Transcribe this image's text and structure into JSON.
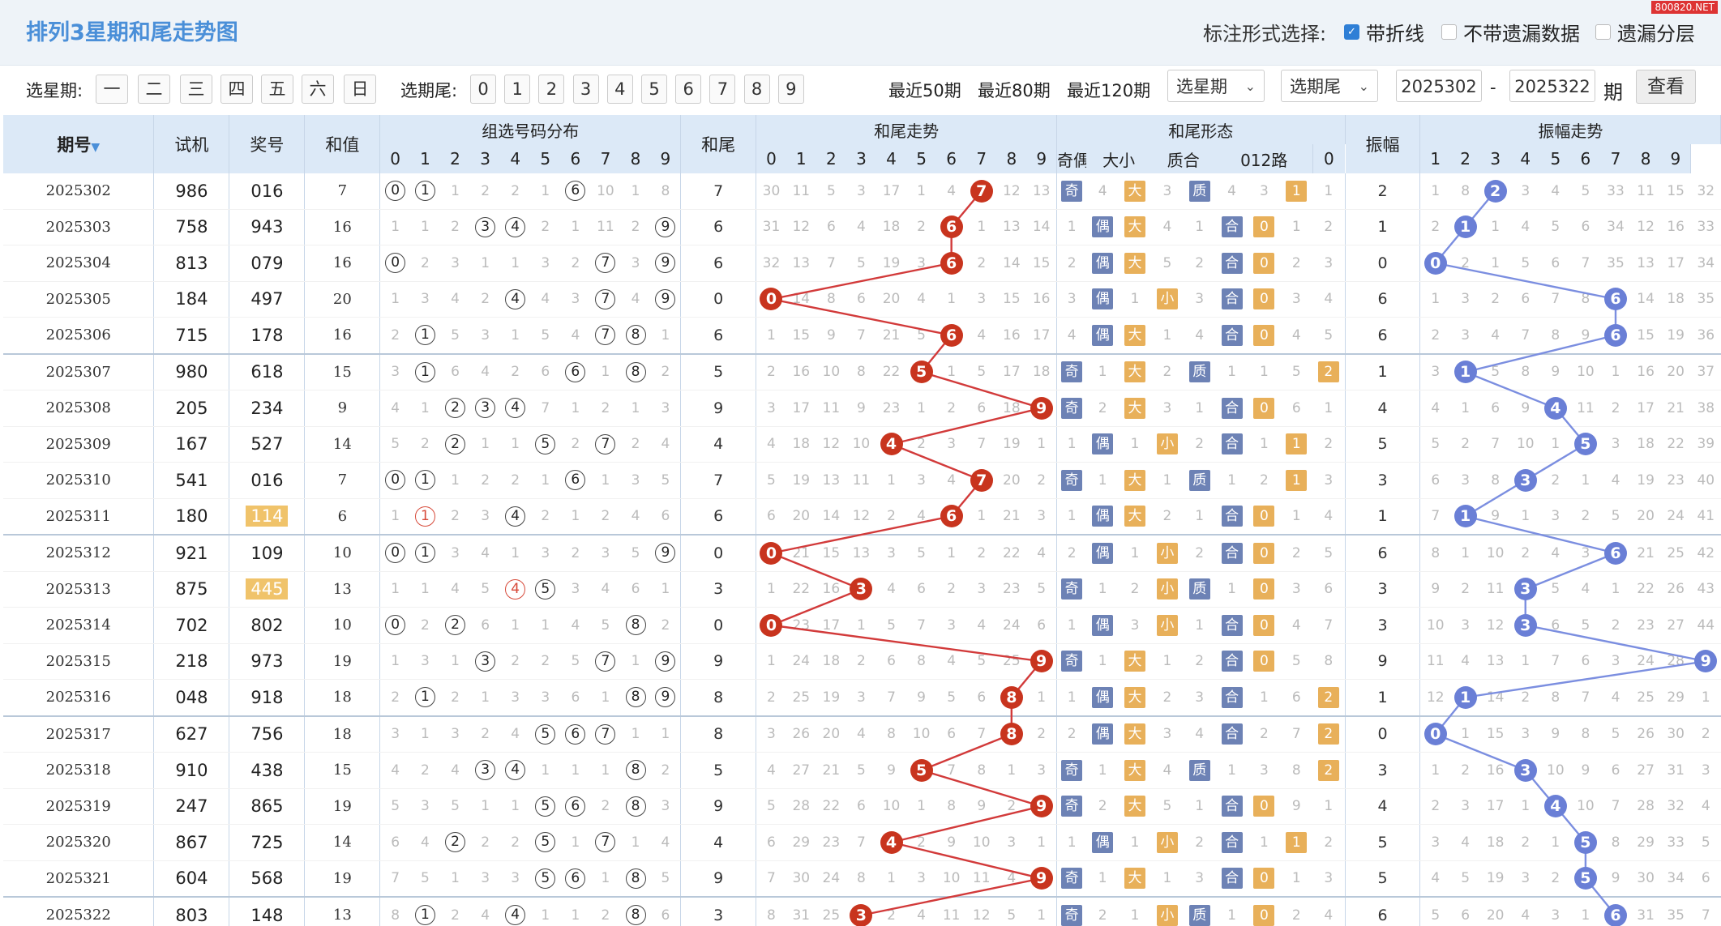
{
  "header": {
    "title": "排列3星期和尾走势图",
    "mark_label": "标注形式选择:",
    "options": [
      {
        "label": "带折线",
        "checked": true
      },
      {
        "label": "不带遗漏数据",
        "checked": false
      },
      {
        "label": "遗漏分层",
        "checked": false
      }
    ],
    "watermark": "800820.NET"
  },
  "controls": {
    "weekday_label": "选星期:",
    "weekdays": [
      "一",
      "二",
      "三",
      "四",
      "五",
      "六",
      "日"
    ],
    "tail_label": "选期尾:",
    "tails": [
      "0",
      "1",
      "2",
      "3",
      "4",
      "5",
      "6",
      "7",
      "8",
      "9"
    ],
    "quick": [
      "最近50期",
      "最近80期",
      "最近120期"
    ],
    "select_weekday": "选星期",
    "select_tail": "选期尾",
    "from": "2025302",
    "dash": "-",
    "to": "2025322",
    "period_label": "期",
    "view_button": "查看"
  },
  "table": {
    "headers": {
      "issue": "期号",
      "sj": "试机",
      "jh": "奖号",
      "hz": "和值",
      "zx": "组选号码分布",
      "hw": "和尾",
      "hwqs": "和尾走势",
      "hwxt": "和尾形态",
      "zf": "振幅",
      "zfqs": "振幅走势"
    },
    "form_headers": [
      "奇偶",
      "大小",
      "质合",
      "012路"
    ],
    "digits": [
      "0",
      "1",
      "2",
      "3",
      "4",
      "5",
      "6",
      "7",
      "8",
      "9"
    ],
    "rows": [
      {
        "issue": "2025302",
        "sj": "986",
        "jh": "016",
        "hz": "7",
        "zx": [
          "0",
          "1",
          "1",
          "2",
          "2",
          "1",
          "6",
          "10",
          "1",
          "8"
        ],
        "hw": "7",
        "hwqs": [
          "30",
          "11",
          "5",
          "3",
          "17",
          "1",
          "4",
          "7",
          "12",
          "13"
        ],
        "form": [
          "奇",
          "4",
          "大",
          "3",
          "质",
          "4",
          "3",
          "1",
          "1"
        ],
        "zf": "2",
        "zfqs": [
          "1",
          "8",
          "2",
          "3",
          "4",
          "5",
          "33",
          "11",
          "15",
          "32"
        ]
      },
      {
        "issue": "2025303",
        "sj": "758",
        "jh": "943",
        "hz": "16",
        "zx": [
          "1",
          "1",
          "2",
          "3",
          "4",
          "2",
          "1",
          "11",
          "2",
          "9"
        ],
        "hw": "6",
        "hwqs": [
          "31",
          "12",
          "6",
          "4",
          "18",
          "2",
          "6",
          "1",
          "13",
          "14"
        ],
        "form": [
          "1",
          "偶",
          "大",
          "4",
          "1",
          "合",
          "0",
          "1",
          "2"
        ],
        "zf": "1",
        "zfqs": [
          "2",
          "1",
          "1",
          "4",
          "5",
          "6",
          "34",
          "12",
          "16",
          "33"
        ]
      },
      {
        "issue": "2025304",
        "sj": "813",
        "jh": "079",
        "hz": "16",
        "zx": [
          "0",
          "2",
          "3",
          "1",
          "1",
          "3",
          "2",
          "7",
          "3",
          "9"
        ],
        "hw": "6",
        "hwqs": [
          "32",
          "13",
          "7",
          "5",
          "19",
          "3",
          "6",
          "2",
          "14",
          "15"
        ],
        "form": [
          "2",
          "偶",
          "大",
          "5",
          "2",
          "合",
          "0",
          "2",
          "3"
        ],
        "zf": "0",
        "zfqs": [
          "0",
          "2",
          "1",
          "5",
          "6",
          "7",
          "35",
          "13",
          "17",
          "34"
        ]
      },
      {
        "issue": "2025305",
        "sj": "184",
        "jh": "497",
        "hz": "20",
        "zx": [
          "1",
          "3",
          "4",
          "2",
          "4",
          "4",
          "3",
          "7",
          "4",
          "9"
        ],
        "hw": "0",
        "hwqs": [
          "0",
          "14",
          "8",
          "6",
          "20",
          "4",
          "1",
          "3",
          "15",
          "16"
        ],
        "form": [
          "3",
          "偶",
          "1",
          "小",
          "3",
          "合",
          "0",
          "3",
          "4"
        ],
        "zf": "6",
        "zfqs": [
          "1",
          "3",
          "2",
          "6",
          "7",
          "8",
          "6",
          "14",
          "18",
          "35"
        ]
      },
      {
        "issue": "2025306",
        "sj": "715",
        "jh": "178",
        "hz": "16",
        "zx": [
          "2",
          "1",
          "5",
          "3",
          "1",
          "5",
          "4",
          "7",
          "8",
          "1"
        ],
        "hw": "6",
        "hwqs": [
          "1",
          "15",
          "9",
          "7",
          "21",
          "5",
          "6",
          "4",
          "16",
          "17"
        ],
        "form": [
          "4",
          "偶",
          "大",
          "1",
          "4",
          "合",
          "0",
          "4",
          "5"
        ],
        "zf": "6",
        "zfqs": [
          "2",
          "3",
          "4",
          "7",
          "8",
          "9",
          "6",
          "15",
          "19",
          "36"
        ]
      },
      {
        "issue": "2025307",
        "sj": "980",
        "jh": "618",
        "hz": "15",
        "zx": [
          "3",
          "1",
          "6",
          "4",
          "2",
          "6",
          "6",
          "1",
          "8",
          "2"
        ],
        "hw": "5",
        "hwqs": [
          "2",
          "16",
          "10",
          "8",
          "22",
          "5",
          "1",
          "5",
          "17",
          "18"
        ],
        "form": [
          "奇",
          "1",
          "大",
          "2",
          "质",
          "1",
          "1",
          "5",
          "2"
        ],
        "zf": "1",
        "zfqs": [
          "3",
          "1",
          "5",
          "8",
          "9",
          "10",
          "1",
          "16",
          "20",
          "37"
        ]
      },
      {
        "issue": "2025308",
        "sj": "205",
        "jh": "234",
        "hz": "9",
        "zx": [
          "4",
          "1",
          "2",
          "3",
          "4",
          "7",
          "1",
          "2",
          "1",
          "3"
        ],
        "hw": "9",
        "hwqs": [
          "3",
          "17",
          "11",
          "9",
          "23",
          "1",
          "2",
          "6",
          "18",
          "9"
        ],
        "form": [
          "奇",
          "2",
          "大",
          "3",
          "1",
          "合",
          "0",
          "6",
          "1"
        ],
        "zf": "4",
        "zfqs": [
          "4",
          "1",
          "6",
          "9",
          "4",
          "11",
          "2",
          "17",
          "21",
          "38"
        ]
      },
      {
        "issue": "2025309",
        "sj": "167",
        "jh": "527",
        "hz": "14",
        "zx": [
          "5",
          "2",
          "2",
          "1",
          "1",
          "5",
          "2",
          "7",
          "2",
          "4"
        ],
        "hw": "4",
        "hwqs": [
          "4",
          "18",
          "12",
          "10",
          "4",
          "2",
          "3",
          "7",
          "19",
          "1"
        ],
        "form": [
          "1",
          "偶",
          "1",
          "小",
          "2",
          "合",
          "1",
          "1",
          "2"
        ],
        "zf": "5",
        "zfqs": [
          "5",
          "2",
          "7",
          "10",
          "1",
          "5",
          "3",
          "18",
          "22",
          "39"
        ]
      },
      {
        "issue": "2025310",
        "sj": "541",
        "jh": "016",
        "hz": "7",
        "zx": [
          "0",
          "1",
          "1",
          "2",
          "2",
          "1",
          "6",
          "1",
          "3",
          "5"
        ],
        "hw": "7",
        "hwqs": [
          "5",
          "19",
          "13",
          "11",
          "1",
          "3",
          "4",
          "7",
          "20",
          "2"
        ],
        "form": [
          "奇",
          "1",
          "大",
          "1",
          "质",
          "1",
          "2",
          "1",
          "3"
        ],
        "zf": "3",
        "zfqs": [
          "6",
          "3",
          "8",
          "3",
          "2",
          "1",
          "4",
          "19",
          "23",
          "40"
        ]
      },
      {
        "issue": "2025311",
        "sj": "180",
        "jh": "114",
        "jh_hl": true,
        "hz": "6",
        "zx": [
          "1",
          "1",
          "2",
          "3",
          "4",
          "2",
          "1",
          "2",
          "4",
          "6"
        ],
        "hw": "6",
        "hwqs": [
          "6",
          "20",
          "14",
          "12",
          "2",
          "4",
          "6",
          "1",
          "21",
          "3"
        ],
        "form": [
          "1",
          "偶",
          "大",
          "2",
          "1",
          "合",
          "0",
          "1",
          "4"
        ],
        "zf": "1",
        "zfqs": [
          "7",
          "1",
          "9",
          "1",
          "3",
          "2",
          "5",
          "20",
          "24",
          "41"
        ]
      },
      {
        "issue": "2025312",
        "sj": "921",
        "jh": "109",
        "hz": "10",
        "zx": [
          "0",
          "1",
          "3",
          "4",
          "1",
          "3",
          "2",
          "3",
          "5",
          "9"
        ],
        "hw": "0",
        "hwqs": [
          "0",
          "21",
          "15",
          "13",
          "3",
          "5",
          "1",
          "2",
          "22",
          "4"
        ],
        "form": [
          "2",
          "偶",
          "1",
          "小",
          "2",
          "合",
          "0",
          "2",
          "5"
        ],
        "zf": "6",
        "zfqs": [
          "8",
          "1",
          "10",
          "2",
          "4",
          "3",
          "6",
          "21",
          "25",
          "42"
        ]
      },
      {
        "issue": "2025313",
        "sj": "875",
        "jh": "445",
        "jh_hl": true,
        "hz": "13",
        "zx": [
          "1",
          "1",
          "4",
          "5",
          "4",
          "5",
          "3",
          "4",
          "6",
          "1"
        ],
        "hw": "3",
        "hwqs": [
          "1",
          "22",
          "16",
          "3",
          "4",
          "6",
          "2",
          "3",
          "23",
          "5"
        ],
        "form": [
          "奇",
          "1",
          "2",
          "小",
          "质",
          "1",
          "0",
          "3",
          "6"
        ],
        "zf": "3",
        "zfqs": [
          "9",
          "2",
          "11",
          "3",
          "5",
          "4",
          "1",
          "22",
          "26",
          "43"
        ]
      },
      {
        "issue": "2025314",
        "sj": "702",
        "jh": "802",
        "hz": "10",
        "zx": [
          "0",
          "2",
          "2",
          "6",
          "1",
          "1",
          "4",
          "5",
          "8",
          "2"
        ],
        "hw": "0",
        "hwqs": [
          "0",
          "23",
          "17",
          "1",
          "5",
          "7",
          "3",
          "4",
          "24",
          "6"
        ],
        "form": [
          "1",
          "偶",
          "3",
          "小",
          "1",
          "合",
          "0",
          "4",
          "7"
        ],
        "zf": "3",
        "zfqs": [
          "10",
          "3",
          "12",
          "3",
          "6",
          "5",
          "2",
          "23",
          "27",
          "44"
        ]
      },
      {
        "issue": "2025315",
        "sj": "218",
        "jh": "973",
        "hz": "19",
        "zx": [
          "1",
          "3",
          "1",
          "3",
          "2",
          "2",
          "5",
          "7",
          "1",
          "9"
        ],
        "hw": "9",
        "hwqs": [
          "1",
          "24",
          "18",
          "2",
          "6",
          "8",
          "4",
          "5",
          "25",
          "9"
        ],
        "form": [
          "奇",
          "1",
          "大",
          "1",
          "2",
          "合",
          "0",
          "5",
          "8"
        ],
        "zf": "9",
        "zfqs": [
          "11",
          "4",
          "13",
          "1",
          "7",
          "6",
          "3",
          "24",
          "28",
          "9"
        ]
      },
      {
        "issue": "2025316",
        "sj": "048",
        "jh": "918",
        "hz": "18",
        "zx": [
          "2",
          "1",
          "2",
          "1",
          "3",
          "3",
          "6",
          "1",
          "8",
          "9"
        ],
        "hw": "8",
        "hwqs": [
          "2",
          "25",
          "19",
          "3",
          "7",
          "9",
          "5",
          "6",
          "8",
          "1"
        ],
        "form": [
          "1",
          "偶",
          "大",
          "2",
          "3",
          "合",
          "1",
          "6",
          "2"
        ],
        "zf": "1",
        "zfqs": [
          "12",
          "1",
          "14",
          "2",
          "8",
          "7",
          "4",
          "25",
          "29",
          "1"
        ]
      },
      {
        "issue": "2025317",
        "sj": "627",
        "jh": "756",
        "hz": "18",
        "zx": [
          "3",
          "1",
          "3",
          "2",
          "4",
          "5",
          "6",
          "7",
          "1",
          "1"
        ],
        "hw": "8",
        "hwqs": [
          "3",
          "26",
          "20",
          "4",
          "8",
          "10",
          "6",
          "7",
          "8",
          "2"
        ],
        "form": [
          "2",
          "偶",
          "大",
          "3",
          "4",
          "合",
          "2",
          "7",
          "2"
        ],
        "zf": "0",
        "zfqs": [
          "0",
          "1",
          "15",
          "3",
          "9",
          "8",
          "5",
          "26",
          "30",
          "2"
        ]
      },
      {
        "issue": "2025318",
        "sj": "910",
        "jh": "438",
        "hz": "15",
        "zx": [
          "4",
          "2",
          "4",
          "3",
          "4",
          "1",
          "1",
          "1",
          "8",
          "2"
        ],
        "hw": "5",
        "hwqs": [
          "4",
          "27",
          "21",
          "5",
          "9",
          "5",
          "7",
          "8",
          "1",
          "3"
        ],
        "form": [
          "奇",
          "1",
          "大",
          "4",
          "质",
          "1",
          "3",
          "8",
          "2"
        ],
        "zf": "3",
        "zfqs": [
          "1",
          "2",
          "16",
          "3",
          "10",
          "9",
          "6",
          "27",
          "31",
          "3"
        ]
      },
      {
        "issue": "2025319",
        "sj": "247",
        "jh": "865",
        "hz": "19",
        "zx": [
          "5",
          "3",
          "5",
          "1",
          "1",
          "5",
          "6",
          "2",
          "8",
          "3"
        ],
        "hw": "9",
        "hwqs": [
          "5",
          "28",
          "22",
          "6",
          "10",
          "1",
          "8",
          "9",
          "2",
          "9"
        ],
        "form": [
          "奇",
          "2",
          "大",
          "5",
          "1",
          "合",
          "0",
          "9",
          "1"
        ],
        "zf": "4",
        "zfqs": [
          "2",
          "3",
          "17",
          "1",
          "4",
          "10",
          "7",
          "28",
          "32",
          "4"
        ]
      },
      {
        "issue": "2025320",
        "sj": "867",
        "jh": "725",
        "hz": "14",
        "zx": [
          "6",
          "4",
          "2",
          "2",
          "2",
          "5",
          "1",
          "7",
          "1",
          "4"
        ],
        "hw": "4",
        "hwqs": [
          "6",
          "29",
          "23",
          "7",
          "4",
          "2",
          "9",
          "10",
          "3",
          "1"
        ],
        "form": [
          "1",
          "偶",
          "1",
          "小",
          "2",
          "合",
          "1",
          "1",
          "2"
        ],
        "zf": "5",
        "zfqs": [
          "3",
          "4",
          "18",
          "2",
          "1",
          "5",
          "8",
          "29",
          "33",
          "5"
        ]
      },
      {
        "issue": "2025321",
        "sj": "604",
        "jh": "568",
        "hz": "19",
        "zx": [
          "7",
          "5",
          "1",
          "3",
          "3",
          "5",
          "6",
          "1",
          "8",
          "5"
        ],
        "hw": "9",
        "hwqs": [
          "7",
          "30",
          "24",
          "8",
          "1",
          "3",
          "10",
          "11",
          "4",
          "9"
        ],
        "form": [
          "奇",
          "1",
          "大",
          "1",
          "3",
          "合",
          "0",
          "1",
          "3"
        ],
        "zf": "5",
        "zfqs": [
          "4",
          "5",
          "19",
          "3",
          "2",
          "5",
          "9",
          "30",
          "34",
          "6"
        ]
      },
      {
        "issue": "2025322",
        "sj": "803",
        "jh": "148",
        "hz": "13",
        "zx": [
          "8",
          "1",
          "2",
          "4",
          "4",
          "1",
          "1",
          "2",
          "8",
          "6"
        ],
        "hw": "3",
        "hwqs": [
          "8",
          "31",
          "25",
          "3",
          "2",
          "4",
          "11",
          "12",
          "5",
          "1"
        ],
        "form": [
          "奇",
          "2",
          "1",
          "小",
          "质",
          "1",
          "0",
          "2",
          "4"
        ],
        "zf": "6",
        "zfqs": [
          "5",
          "6",
          "20",
          "4",
          "3",
          "1",
          "6",
          "31",
          "35",
          "7"
        ]
      }
    ]
  }
}
